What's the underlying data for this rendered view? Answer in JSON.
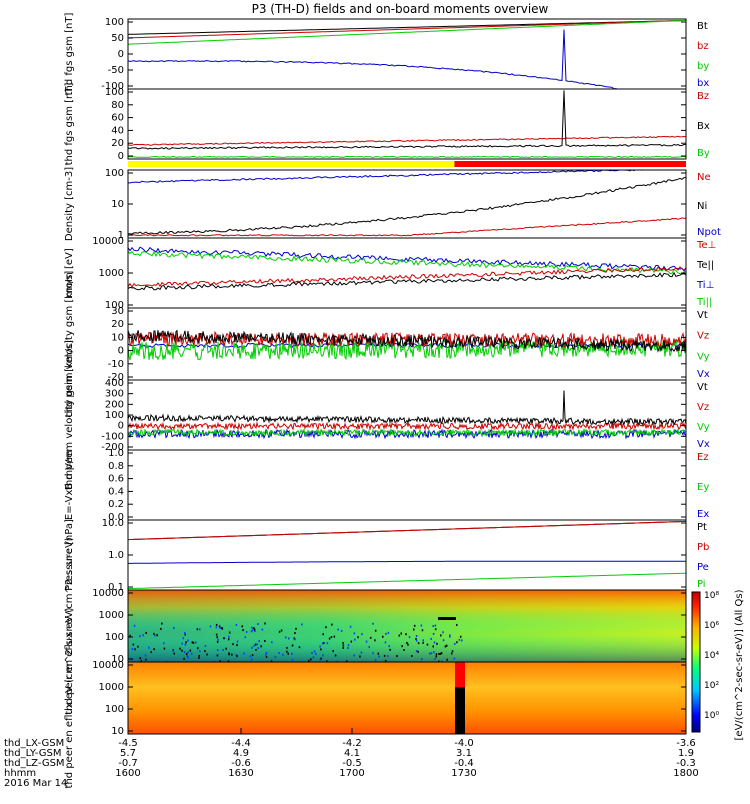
{
  "title": "P3 (TH-D) fields and on-board moments overview",
  "footer": {
    "rows": [
      {
        "label": "thd_LX-GSM",
        "values": [
          "-4.5",
          "-4.4",
          "-4.2",
          "-4.0",
          "-3.6"
        ]
      },
      {
        "label": "thd_LY-GSM",
        "values": [
          "5.7",
          "4.9",
          "4.1",
          "3.1",
          "1.9"
        ]
      },
      {
        "label": "thd_LZ-GSM",
        "values": [
          "-0.7",
          "-0.6",
          "-0.5",
          "-0.4",
          "-0.3"
        ]
      },
      {
        "label": "hhmm",
        "values": [
          "1600",
          "1630",
          "1700",
          "1730",
          "1800"
        ]
      }
    ],
    "date": "2016 Mar 14"
  },
  "colorbar": {
    "label": "[eV/(cm^2-sec-sr-eV)] (All Qs)",
    "ticks": [
      "10⁸",
      "10⁶",
      "10⁴",
      "10²",
      "10⁰"
    ]
  },
  "chart_data": [
    {
      "type": "line",
      "ylabel": "thd fgs gsm [nT]",
      "yticks": [
        "100",
        "50",
        "0",
        "-50",
        "-100"
      ],
      "series": [
        {
          "name": "Bt",
          "color": "#000000"
        },
        {
          "name": "bz",
          "color": "#cc0000"
        },
        {
          "name": "by",
          "color": "#00cc00"
        },
        {
          "name": "bx",
          "color": "#0000cc"
        }
      ]
    },
    {
      "type": "line",
      "ylabel": "thd fgs gsm [nT]",
      "yticks": [
        "100",
        "80",
        "60",
        "40",
        "20",
        "0"
      ],
      "series": [
        {
          "name": "Bz",
          "color": "#cc0000"
        },
        {
          "name": "Bx",
          "color": "#000000"
        },
        {
          "name": "By",
          "color": "#00cc00"
        }
      ]
    },
    {
      "type": "line",
      "ylabel": "Density [cm-3]",
      "yticks": [
        "100",
        "10",
        "1"
      ],
      "scale": "log",
      "series": [
        {
          "name": "Ne",
          "color": "#cc0000"
        },
        {
          "name": "Ni",
          "color": "#000000"
        },
        {
          "name": "Npot",
          "color": "#0000cc"
        }
      ]
    },
    {
      "type": "line",
      "ylabel": "mom [eV]",
      "yticks": [
        "10000",
        "1000",
        "100"
      ],
      "scale": "log",
      "series": [
        {
          "name": "Te⊥",
          "color": "#cc0000"
        },
        {
          "name": "Te||",
          "color": "#000000"
        },
        {
          "name": "Ti⊥",
          "color": "#0000cc"
        },
        {
          "name": "Ti||",
          "color": "#00cc00"
        }
      ]
    },
    {
      "type": "line",
      "ylabel": "thd peim velocity gsm [km/s]",
      "yticks": [
        "30",
        "20",
        "10",
        "0",
        "-10",
        "-20"
      ],
      "series": [
        {
          "name": "Vt",
          "color": "#000000"
        },
        {
          "name": "Vz",
          "color": "#cc0000"
        },
        {
          "name": "Vy",
          "color": "#00cc00"
        },
        {
          "name": "Vx",
          "color": "#0000cc"
        }
      ]
    },
    {
      "type": "line",
      "ylabel": "thd peem velocity gsm [km/s]",
      "yticks": [
        "400",
        "300",
        "200",
        "100",
        "0",
        "-100",
        "-200"
      ],
      "series": [
        {
          "name": "Vt",
          "color": "#000000"
        },
        {
          "name": "Vz",
          "color": "#cc0000"
        },
        {
          "name": "Vy",
          "color": "#00cc00"
        },
        {
          "name": "Vx",
          "color": "#0000cc"
        }
      ]
    },
    {
      "type": "line",
      "ylabel": "E=-VxB mV/m",
      "yticks": [
        "1.0",
        "0.8",
        "0.6",
        "0.4",
        "0.2",
        "0.0"
      ],
      "series": [
        {
          "name": "Ez",
          "color": "#cc0000"
        },
        {
          "name": "Ey",
          "color": "#00cc00"
        },
        {
          "name": "Ex",
          "color": "#0000cc"
        }
      ]
    },
    {
      "type": "line",
      "ylabel": "Pressure [nPa]",
      "yticks": [
        "10.0",
        "1.0",
        "0.1"
      ],
      "scale": "log",
      "series": [
        {
          "name": "Pt",
          "color": "#000000"
        },
        {
          "name": "Pb",
          "color": "#cc0000"
        },
        {
          "name": "Pe",
          "color": "#0000cc"
        },
        {
          "name": "Pi",
          "color": "#00cc00"
        }
      ]
    },
    {
      "type": "heatmap",
      "ylabel": "thd peir en eflux eV (cm^2-s-sr-eV)",
      "yticks": [
        "10000",
        "1000",
        "100",
        "10"
      ]
    },
    {
      "type": "heatmap",
      "ylabel": "thd peer en eflux eV (cm^2-s-sr-eV)",
      "yticks": [
        "10000",
        "1000",
        "100",
        "10"
      ]
    }
  ]
}
